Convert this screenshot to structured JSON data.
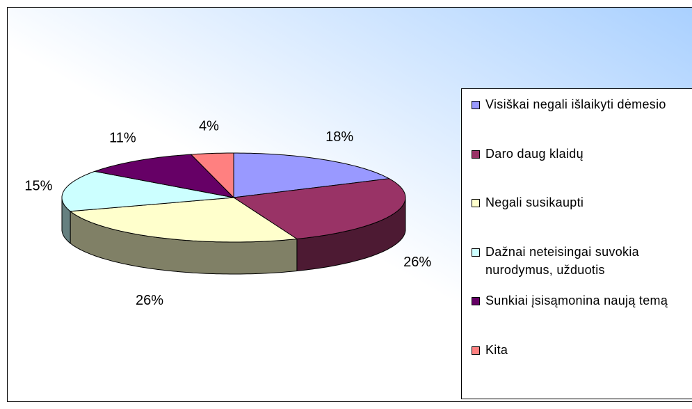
{
  "chart_data": {
    "type": "pie3d",
    "categories": [
      "Visiškai negali išlaikyti dėmesio",
      "Daro daug klaidų",
      "Negali susikaupti",
      "Dažnai neteisingai suvokia nurodymus, užduotis",
      "Sunkiai įsisąmonina naują temą",
      "Kita"
    ],
    "values": [
      18,
      26,
      26,
      15,
      11,
      4
    ],
    "value_labels": [
      "18%",
      "26%",
      "26%",
      "15%",
      "11%",
      "4%"
    ],
    "colors": [
      "#9999ff",
      "#993366",
      "#ffffcc",
      "#ccffff",
      "#660066",
      "#ff8080"
    ],
    "legend": "right"
  }
}
